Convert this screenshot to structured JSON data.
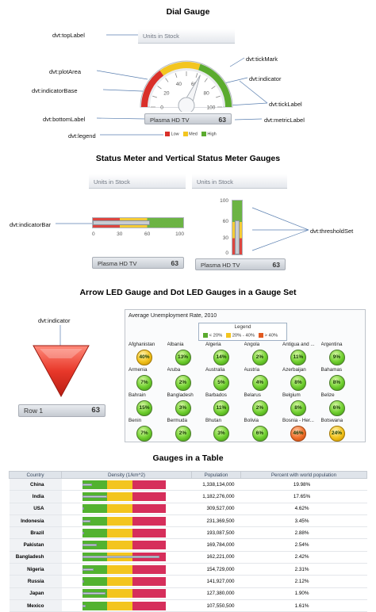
{
  "section_titles": {
    "dial": "Dial Gauge",
    "status": "Status Meter and Vertical Status Meter Gauges",
    "led": "Arrow LED Gauge and Dot LED Gauges in a Gauge Set",
    "table": "Gauges in a Table"
  },
  "dial": {
    "top_label": "Units in Stock",
    "bottom_label": "Plasma HD TV",
    "metric": "63",
    "value": 63,
    "min": 0,
    "max": 100,
    "ticks": [
      "0",
      "20",
      "40",
      "60",
      "80",
      "100"
    ],
    "legend": [
      "Low",
      "Med",
      "High"
    ],
    "colors": {
      "low": "#d9302a",
      "med": "#f3c51f",
      "high": "#5bab2f"
    },
    "callouts": {
      "top_label": "dvt:topLabel",
      "plot_area": "dvt:plotArea",
      "indicator_base": "dvt:indicatorBase",
      "bottom_label": "dvt:bottomLabel",
      "legend": "dvt:legend",
      "tick_mark": "dvt:tickMark",
      "indicator": "dvt:indicator",
      "tick_label": "dvt:tickLabel",
      "metric_label": "dvt:metricLabel"
    }
  },
  "status": {
    "horizontal": {
      "top_label": "Units in Stock",
      "bottom_label": "Plasma HD TV",
      "metric": "63",
      "value": 63,
      "ticks": [
        "0",
        "30",
        "60",
        "100"
      ]
    },
    "vertical": {
      "top_label": "Units in Stock",
      "bottom_label": "Plasma HD TV",
      "metric": "63",
      "value": 63,
      "ticks": [
        "100",
        "60",
        "30",
        "0"
      ]
    },
    "callouts": {
      "indicator_bar": "dvt:indicatorBar",
      "threshold_set": "dvt:thresholdSet"
    }
  },
  "arrow_led": {
    "callout": "dvt:indicator",
    "bottom_label": "Row 1",
    "metric": "63"
  },
  "dot_leds": {
    "title": "Average Unemployment Rate, 2010",
    "legend_title": "Legend",
    "legend": [
      "< 20%",
      "20% - 40%",
      "> 40%"
    ],
    "items": [
      {
        "name": "Afghanistan",
        "value": "40%",
        "color": "yellow"
      },
      {
        "name": "Albania",
        "value": "13%",
        "color": "green"
      },
      {
        "name": "Algeria",
        "value": "14%",
        "color": "green"
      },
      {
        "name": "Angola",
        "value": "2%",
        "color": "green"
      },
      {
        "name": "Antigua and ...",
        "value": "11%",
        "color": "green"
      },
      {
        "name": "Argentina",
        "value": "9%",
        "color": "green"
      },
      {
        "name": "Armenia",
        "value": "7%",
        "color": "green"
      },
      {
        "name": "Aruba",
        "value": "2%",
        "color": "green"
      },
      {
        "name": "Australia",
        "value": "5%",
        "color": "green"
      },
      {
        "name": "Austria",
        "value": "4%",
        "color": "green"
      },
      {
        "name": "Azerbaijan",
        "value": "8%",
        "color": "green"
      },
      {
        "name": "Bahamas",
        "value": "8%",
        "color": "green"
      },
      {
        "name": "Bahrain",
        "value": "15%",
        "color": "green"
      },
      {
        "name": "Bangladesh",
        "value": "3%",
        "color": "green"
      },
      {
        "name": "Barbados",
        "value": "11%",
        "color": "green"
      },
      {
        "name": "Belarus",
        "value": "2%",
        "color": "green"
      },
      {
        "name": "Belgium",
        "value": "8%",
        "color": "green"
      },
      {
        "name": "Belize",
        "value": "6%",
        "color": "green"
      },
      {
        "name": "Benin",
        "value": "7%",
        "color": "green"
      },
      {
        "name": "Bermuda",
        "value": "2%",
        "color": "green"
      },
      {
        "name": "Bhutan",
        "value": "3%",
        "color": "green"
      },
      {
        "name": "Bolivia",
        "value": "6%",
        "color": "green"
      },
      {
        "name": "Bosnia - Her...",
        "value": "46%",
        "color": "orange"
      },
      {
        "name": "Botswana",
        "value": "24%",
        "color": "yellow"
      }
    ]
  },
  "table": {
    "headers": [
      "Country",
      "Density (1/km^2)",
      "Population",
      "Percent with world population"
    ],
    "rows": [
      {
        "country": "China",
        "density": 140,
        "population": "1,338,134,000",
        "percent": "19.98%"
      },
      {
        "country": "India",
        "density": 360,
        "population": "1,182,276,000",
        "percent": "17.65%"
      },
      {
        "country": "USA",
        "density": 32,
        "population": "309,527,000",
        "percent": "4.62%"
      },
      {
        "country": "Indonesia",
        "density": 122,
        "population": "231,369,500",
        "percent": "3.45%"
      },
      {
        "country": "Brazil",
        "density": 23,
        "population": "193,087,500",
        "percent": "2.88%"
      },
      {
        "country": "Pakistan",
        "density": 210,
        "population": "169,784,000",
        "percent": "2.54%"
      },
      {
        "country": "Bangladesh",
        "density": 1100,
        "population": "162,221,000",
        "percent": "2.42%"
      },
      {
        "country": "Nigeria",
        "density": 167,
        "population": "154,729,000",
        "percent": "2.31%"
      },
      {
        "country": "Russia",
        "density": 8,
        "population": "141,927,000",
        "percent": "2.12%"
      },
      {
        "country": "Japan",
        "density": 337,
        "population": "127,380,000",
        "percent": "1.90%"
      },
      {
        "country": "Mexico",
        "density": 54,
        "population": "107,550,500",
        "percent": "1.61%"
      }
    ]
  }
}
